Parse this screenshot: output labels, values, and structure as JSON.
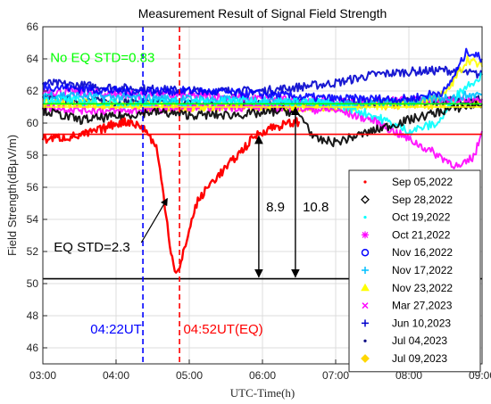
{
  "chart_data": {
    "type": "line",
    "title": "Measurement Result of Signal Field Strength",
    "xlabel": "UTC-Time(h)",
    "ylabel": "Field Strength(dBμV/m)",
    "xlim": [
      3,
      9
    ],
    "ylim": [
      45,
      66
    ],
    "x_ticks": [
      3,
      4,
      5,
      6,
      7,
      8,
      9
    ],
    "x_tick_labels": [
      "03:00",
      "04:00",
      "05:00",
      "06:00",
      "07:00",
      "08:00",
      "09:00"
    ],
    "y_ticks": [
      46,
      48,
      50,
      52,
      54,
      56,
      58,
      60,
      62,
      64,
      66
    ],
    "grid": true,
    "legend_position": "bottom-right",
    "series": [
      {
        "name": "Sep 05,2022",
        "color": "#ff0000",
        "marker": "dot",
        "x": [
          3.0,
          3.5,
          3.8,
          4.0,
          4.2,
          4.4,
          4.55,
          4.65,
          4.75,
          4.82,
          4.87,
          4.95,
          5.1,
          5.3,
          5.5,
          5.7,
          5.9,
          6.1,
          6.3,
          6.5
        ],
        "y": [
          59.0,
          59.2,
          59.6,
          60.0,
          60.1,
          59.6,
          58.5,
          55.5,
          52.0,
          50.6,
          50.9,
          52.5,
          55.0,
          56.3,
          57.2,
          58.2,
          59.2,
          59.7,
          59.9,
          60.1
        ]
      },
      {
        "name": "Sep 28,2022",
        "color": "#000000",
        "marker": "diamond",
        "x": [
          3.0,
          3.5,
          4.0,
          4.5,
          5.0,
          5.5,
          6.0,
          6.3,
          6.5,
          6.6,
          6.7,
          7.0,
          7.5,
          8.0,
          8.5,
          9.0
        ],
        "y": [
          60.8,
          60.2,
          60.4,
          60.7,
          60.5,
          60.5,
          60.6,
          60.8,
          60.5,
          60.0,
          59.0,
          58.8,
          59.5,
          60.2,
          60.8,
          61.2
        ]
      },
      {
        "name": "Oct 19,2022",
        "color": "#00ffff",
        "marker": "dot",
        "x": [
          3.0,
          4.0,
          5.0,
          6.0,
          7.0,
          7.5,
          8.0,
          8.4,
          8.7,
          9.0
        ],
        "y": [
          61.5,
          61.2,
          61.3,
          61.4,
          61.2,
          60.5,
          59.5,
          60.0,
          62.0,
          63.0
        ]
      },
      {
        "name": "Oct 21,2022",
        "color": "#ff00ff",
        "marker": "asterisk",
        "x": [
          3.0,
          4.0,
          5.0,
          6.0,
          7.0,
          7.5,
          8.0,
          8.4,
          8.7,
          8.9,
          9.0
        ],
        "y": [
          61.0,
          60.7,
          61.0,
          61.0,
          60.8,
          60.2,
          59.0,
          58.0,
          57.2,
          58.0,
          59.5
        ]
      },
      {
        "name": "Nov 16,2022",
        "color": "#0000ff",
        "marker": "circle",
        "x": [
          3.0,
          4.0,
          5.0,
          6.0,
          7.0,
          8.0,
          8.5,
          8.8,
          9.0
        ],
        "y": [
          62.3,
          62.0,
          62.0,
          61.8,
          61.5,
          61.5,
          62.0,
          64.5,
          64.0
        ]
      },
      {
        "name": "Nov 17,2022",
        "color": "#00bfff",
        "marker": "plus",
        "x": [
          3.0,
          4.0,
          5.0,
          6.0,
          7.0,
          8.0,
          8.5,
          9.0
        ],
        "y": [
          61.8,
          61.6,
          61.5,
          61.4,
          61.2,
          61.3,
          61.6,
          61.8
        ]
      },
      {
        "name": "Nov 23,2022",
        "color": "#ffff00",
        "marker": "triangle",
        "x": [
          3.0,
          4.0,
          5.0,
          6.0,
          7.0,
          8.0,
          8.5,
          8.8,
          9.0
        ],
        "y": [
          61.3,
          61.2,
          61.0,
          61.0,
          61.0,
          61.2,
          61.8,
          64.0,
          63.5
        ]
      },
      {
        "name": "Mar 27,2023",
        "color": "#ff00ff",
        "marker": "cross",
        "x": [
          3.0,
          4.0,
          5.0,
          6.0,
          7.0,
          8.0,
          9.0
        ],
        "y": [
          62.0,
          61.8,
          61.7,
          61.5,
          61.3,
          61.4,
          61.5
        ]
      },
      {
        "name": "Jun 10,2023",
        "color": "#0000cd",
        "marker": "plus",
        "x": [
          3.0,
          4.0,
          5.0,
          6.0,
          7.0,
          7.5,
          8.0,
          8.5,
          9.0
        ],
        "y": [
          62.5,
          62.2,
          62.0,
          62.0,
          62.5,
          63.0,
          63.2,
          63.3,
          63.0
        ]
      },
      {
        "name": "Jul 04,2023",
        "color": "#000080",
        "marker": "dot",
        "x": [
          3.0,
          4.0,
          5.0,
          6.0,
          7.0,
          8.0,
          9.0
        ],
        "y": [
          61.5,
          61.3,
          61.2,
          61.2,
          61.2,
          61.3,
          61.5
        ]
      },
      {
        "name": "Jul 09,2023",
        "color": "#ffd700",
        "marker": "diamond",
        "x": [
          3.0,
          4.0,
          5.0,
          6.0,
          7.0,
          8.0,
          9.0
        ],
        "y": [
          61.2,
          61.0,
          61.0,
          61.0,
          61.0,
          61.1,
          61.3
        ]
      }
    ],
    "reference_lines": [
      {
        "orientation": "horizontal",
        "y": 61.0,
        "color": "#ffff00"
      },
      {
        "orientation": "horizontal",
        "y": 61.2,
        "color": "#00ff00"
      },
      {
        "orientation": "horizontal",
        "y": 59.3,
        "color": "#ff0000"
      },
      {
        "orientation": "horizontal",
        "y": 50.3,
        "color": "#000000"
      },
      {
        "orientation": "vertical",
        "x": 4.367,
        "color": "#0000ff",
        "style": "dashed"
      },
      {
        "orientation": "vertical",
        "x": 4.867,
        "color": "#ff0000",
        "style": "dashed"
      }
    ],
    "annotations": [
      {
        "text": "No EQ STD=0.83",
        "color": "#00ff00",
        "x": 3.1,
        "y": 63.8
      },
      {
        "text": "EQ STD=2.3",
        "color": "#000000",
        "x": 3.15,
        "y": 52.0,
        "arrow_to": [
          4.7,
          55.3
        ]
      },
      {
        "text": "8.9",
        "color": "#000000",
        "x": 6.05,
        "y": 54.5
      },
      {
        "text": "10.8",
        "color": "#000000",
        "x": 6.55,
        "y": 54.5
      },
      {
        "text": "04:22UT",
        "color": "#0000ff",
        "x": 3.65,
        "y": 46.9
      },
      {
        "text": "04:52UT(EQ)",
        "color": "#ff0000",
        "x": 4.92,
        "y": 46.9
      }
    ],
    "double_arrows": [
      {
        "x": 5.95,
        "y1": 59.3,
        "y2": 50.3
      },
      {
        "x": 6.45,
        "y1": 61.1,
        "y2": 50.3
      }
    ]
  }
}
